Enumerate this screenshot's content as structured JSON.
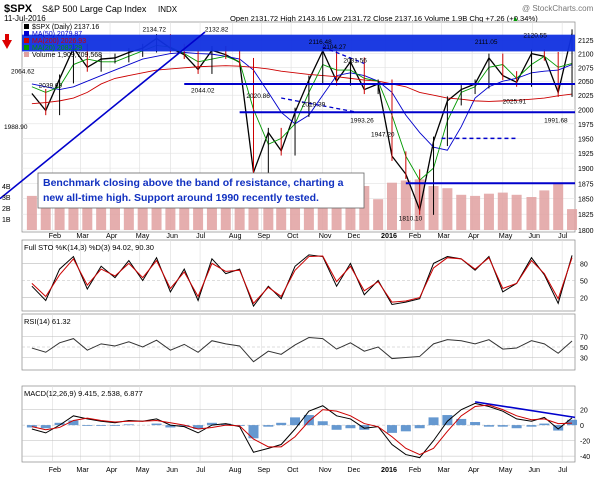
{
  "header": {
    "symbol": "$SPX",
    "description": "S&P 500 Large Cap Index",
    "exchange": "INDX",
    "watermark": "@ StockCharts.com",
    "date": "11-Jul-2016",
    "ohlc": "Open 2131.72  High 2143.16  Low 2131.72  Close 2137.16  Volume 1.9B  Chg +7.26 (+0.34%)",
    "up_arrow": "▲"
  },
  "legend": {
    "price": "$SPX (Daily) 2137.16",
    "ma50": "MA(50) 2079.87",
    "ma200": "MA(200) 2026.93",
    "ma20": "MA(20) 2082.29",
    "volume": "Volume 1,909,709,568"
  },
  "annotation": {
    "text_line1": "Benchmark closing above the band of resistance, charting a",
    "text_line2": "new all-time high. Support around 1990 recently tested."
  },
  "colors": {
    "price_up": "#000000",
    "price_down": "#cc0000",
    "ma50": "#0000cc",
    "ma200": "#cc0000",
    "ma20": "#009900",
    "volume": "#e0a0a0",
    "annotation_lines": "#0000cc",
    "band_fill": "#1030e0",
    "sto_k": "#000000",
    "sto_d": "#cc0000",
    "macd": "#000000",
    "signal": "#cc0000",
    "histogram": "#4a86c8"
  },
  "chart_data": [
    {
      "type": "line",
      "panel": "price",
      "title": "$SPX (Daily) 2137.16",
      "scale": "log",
      "ylim": [
        1800,
        2155
      ],
      "y_ticks": [
        1800,
        1825,
        1850,
        1875,
        1900,
        1925,
        1950,
        1975,
        2000,
        2025,
        2050,
        2075,
        2100,
        2125
      ],
      "x": [
        "2015-01-12",
        "2015-01-26",
        "2015-02-09",
        "2015-02-23",
        "2015-03-09",
        "2015-03-23",
        "2015-04-06",
        "2015-04-20",
        "2015-05-04",
        "2015-05-18",
        "2015-06-01",
        "2015-06-15",
        "2015-06-29",
        "2015-07-13",
        "2015-07-27",
        "2015-08-10",
        "2015-08-24",
        "2015-09-08",
        "2015-09-21",
        "2015-10-05",
        "2015-10-19",
        "2015-11-02",
        "2015-11-16",
        "2015-11-30",
        "2015-12-14",
        "2015-12-28",
        "2016-01-11",
        "2016-01-25",
        "2016-02-08",
        "2016-02-22",
        "2016-03-07",
        "2016-03-21",
        "2016-04-04",
        "2016-04-18",
        "2016-05-02",
        "2016-05-16",
        "2016-05-31",
        "2016-06-13",
        "2016-06-27",
        "2016-07-11"
      ],
      "series": [
        {
          "name": "$SPX",
          "values": [
            2028,
            1998,
            2054,
            2110,
            2075,
            2090,
            2092,
            2102,
            2110,
            2128,
            2110,
            2098,
            2071,
            2106,
            2098,
            2084,
            1893,
            1960,
            1929,
            1995,
            2052,
            2105,
            2050,
            2085,
            2035,
            2045,
            1920,
            1890,
            1832,
            1945,
            2015,
            2035,
            2045,
            2092,
            2060,
            2048,
            2100,
            2095,
            2030,
            2137
          ]
        },
        {
          "name": "MA(50) 2079.87",
          "values": [
            2045,
            2040,
            2035,
            2040,
            2050,
            2060,
            2070,
            2080,
            2090,
            2095,
            2100,
            2102,
            2100,
            2099,
            2095,
            2090,
            2070,
            2030,
            1995,
            1975,
            1990,
            2025,
            2060,
            2065,
            2060,
            2050,
            2030,
            1990,
            1960,
            1935,
            1930,
            1970,
            2020,
            2040,
            2050,
            2055,
            2065,
            2068,
            2070,
            2080
          ]
        },
        {
          "name": "MA(200) 2026.93",
          "values": [
            2010,
            2012,
            2015,
            2020,
            2030,
            2045,
            2055,
            2060,
            2065,
            2070,
            2072,
            2074,
            2076,
            2077,
            2078,
            2077,
            2075,
            2072,
            2068,
            2065,
            2062,
            2060,
            2058,
            2055,
            2052,
            2050,
            2045,
            2040,
            2030,
            2025,
            2020,
            2018,
            2015,
            2014,
            2015,
            2016,
            2018,
            2020,
            2024,
            2027
          ]
        },
        {
          "name": "MA(20) 2082.29",
          "values": [
            2040,
            2030,
            2040,
            2080,
            2090,
            2085,
            2085,
            2095,
            2105,
            2115,
            2112,
            2100,
            2085,
            2090,
            2095,
            2085,
            2000,
            1940,
            1950,
            1975,
            2030,
            2080,
            2070,
            2070,
            2055,
            2050,
            1990,
            1920,
            1880,
            1900,
            1980,
            2030,
            2040,
            2075,
            2080,
            2055,
            2080,
            2095,
            2075,
            2082
          ]
        },
        {
          "name": "Volume 1,909,709,568",
          "values": [
            3.1,
            3.3,
            3.0,
            2.8,
            3.2,
            3.0,
            2.7,
            3.0,
            3.1,
            2.8,
            2.9,
            3.0,
            3.4,
            2.8,
            3.0,
            2.9,
            4.6,
            3.8,
            3.5,
            3.2,
            3.4,
            3.3,
            3.6,
            3.9,
            4.0,
            2.8,
            4.3,
            4.5,
            4.6,
            4.0,
            3.8,
            3.2,
            3.1,
            3.3,
            3.4,
            3.2,
            3.0,
            3.6,
            4.3,
            1.9
          ]
        }
      ],
      "volume_ticks": [
        {
          "label": "4B",
          "value": 4
        },
        {
          "label": "3B",
          "value": 3
        },
        {
          "label": "2B",
          "value": 2
        },
        {
          "label": "1B",
          "value": 1
        }
      ],
      "band": {
        "low": 2104,
        "high": 2135
      },
      "support_levels": [
        2045,
        1995
      ],
      "level_1875": 1875,
      "dashed_level": 1950,
      "value_labels": [
        {
          "text": "2134.72",
          "x": "2015-05-18",
          "y": 2141
        },
        {
          "text": "2132.82",
          "x": "2015-07-20",
          "y": 2141
        },
        {
          "text": "2116.48",
          "x": "2015-11-02",
          "y": 2118
        },
        {
          "text": "2104.27",
          "x": "2015-11-16",
          "y": 2108
        },
        {
          "text": "2081.56",
          "x": "2015-12-07",
          "y": 2084
        },
        {
          "text": "2111.05",
          "x": "2016-04-18",
          "y": 2118
        },
        {
          "text": "2120.55",
          "x": "2016-06-06",
          "y": 2130
        },
        {
          "text": "2064.62",
          "x": "2015-01-05",
          "y": 2064
        },
        {
          "text": "2039.69",
          "x": "2015-02-02",
          "y": 2039
        },
        {
          "text": "2044.02",
          "x": "2015-07-06",
          "y": 2030
        },
        {
          "text": "2020.86",
          "x": "2015-08-31",
          "y": 2020
        },
        {
          "text": "2019.39",
          "x": "2015-10-26",
          "y": 2005
        },
        {
          "text": "1993.26",
          "x": "2015-12-14",
          "y": 1977
        },
        {
          "text": "1947.20",
          "x": "2016-01-04",
          "y": 1953
        },
        {
          "text": "2025.91",
          "x": "2016-05-16",
          "y": 2010
        },
        {
          "text": "1991.68",
          "x": "2016-06-27",
          "y": 1977
        },
        {
          "text": "1988.90",
          "x": "2014-12-29",
          "y": 1966
        },
        {
          "text": "1810.10",
          "x": "2016-02-01",
          "y": 1815
        }
      ]
    },
    {
      "type": "line",
      "panel": "stochastics",
      "title": "Full STO %K(14,3) %D(3) 94.02, 90.30",
      "ylim": [
        0,
        100
      ],
      "y_ticks": [
        20,
        50,
        80
      ],
      "x": [
        "2015-01-12",
        "2015-01-26",
        "2015-02-09",
        "2015-02-23",
        "2015-03-09",
        "2015-03-23",
        "2015-04-06",
        "2015-04-20",
        "2015-05-04",
        "2015-05-18",
        "2015-06-01",
        "2015-06-15",
        "2015-06-29",
        "2015-07-13",
        "2015-07-27",
        "2015-08-10",
        "2015-08-24",
        "2015-09-08",
        "2015-09-21",
        "2015-10-05",
        "2015-10-19",
        "2015-11-02",
        "2015-11-16",
        "2015-11-30",
        "2015-12-14",
        "2015-12-28",
        "2016-01-11",
        "2016-01-25",
        "2016-02-08",
        "2016-02-22",
        "2016-03-07",
        "2016-03-21",
        "2016-04-04",
        "2016-04-18",
        "2016-05-02",
        "2016-05-16",
        "2016-05-31",
        "2016-06-13",
        "2016-06-27",
        "2016-07-11"
      ],
      "series": [
        {
          "name": "%K",
          "values": [
            40,
            15,
            70,
            92,
            35,
            75,
            55,
            85,
            50,
            90,
            30,
            70,
            15,
            88,
            62,
            70,
            5,
            40,
            18,
            75,
            95,
            92,
            40,
            80,
            25,
            50,
            8,
            12,
            18,
            80,
            92,
            88,
            68,
            92,
            30,
            45,
            90,
            60,
            10,
            94
          ]
        },
        {
          "name": "%D",
          "values": [
            45,
            22,
            60,
            88,
            42,
            70,
            58,
            80,
            55,
            85,
            36,
            65,
            22,
            80,
            66,
            68,
            10,
            38,
            22,
            68,
            92,
            93,
            48,
            75,
            32,
            48,
            12,
            14,
            20,
            72,
            90,
            88,
            70,
            90,
            36,
            45,
            85,
            62,
            18,
            90
          ]
        }
      ]
    },
    {
      "type": "line",
      "panel": "rsi",
      "title": "RSI(14) 61.32",
      "ylim": [
        10,
        90
      ],
      "y_ticks": [
        30,
        50,
        70
      ],
      "x": [
        "2015-01-12",
        "2015-01-26",
        "2015-02-09",
        "2015-02-23",
        "2015-03-09",
        "2015-03-23",
        "2015-04-06",
        "2015-04-20",
        "2015-05-04",
        "2015-05-18",
        "2015-06-01",
        "2015-06-15",
        "2015-06-29",
        "2015-07-13",
        "2015-07-27",
        "2015-08-10",
        "2015-08-24",
        "2015-09-08",
        "2015-09-21",
        "2015-10-05",
        "2015-10-19",
        "2015-11-02",
        "2015-11-16",
        "2015-11-30",
        "2015-12-14",
        "2015-12-28",
        "2016-01-11",
        "2016-01-25",
        "2016-02-08",
        "2016-02-22",
        "2016-03-07",
        "2016-03-21",
        "2016-04-04",
        "2016-04-18",
        "2016-05-02",
        "2016-05-16",
        "2016-05-31",
        "2016-06-13",
        "2016-06-27",
        "2016-07-11"
      ],
      "series": [
        {
          "name": "RSI(14)",
          "values": [
            48,
            40,
            58,
            66,
            44,
            56,
            52,
            60,
            50,
            63,
            44,
            55,
            40,
            62,
            56,
            52,
            22,
            42,
            36,
            54,
            68,
            66,
            46,
            58,
            42,
            50,
            28,
            30,
            32,
            56,
            64,
            62,
            56,
            64,
            46,
            48,
            62,
            56,
            38,
            61.32
          ]
        }
      ]
    },
    {
      "type": "line",
      "panel": "macd",
      "title": "MACD(12,26,9) 9.415, 2.538, 6.877",
      "ylim": [
        -45,
        35
      ],
      "y_ticks": [
        -40,
        -20,
        0,
        20
      ],
      "x": [
        "2015-01-12",
        "2015-01-26",
        "2015-02-09",
        "2015-02-23",
        "2015-03-09",
        "2015-03-23",
        "2015-04-06",
        "2015-04-20",
        "2015-05-04",
        "2015-05-18",
        "2015-06-01",
        "2015-06-15",
        "2015-06-29",
        "2015-07-13",
        "2015-07-27",
        "2015-08-10",
        "2015-08-24",
        "2015-09-08",
        "2015-09-21",
        "2015-10-05",
        "2015-10-19",
        "2015-11-02",
        "2015-11-16",
        "2015-11-30",
        "2015-12-14",
        "2015-12-28",
        "2016-01-11",
        "2016-01-25",
        "2016-02-08",
        "2016-02-22",
        "2016-03-07",
        "2016-03-21",
        "2016-04-04",
        "2016-04-18",
        "2016-05-02",
        "2016-05-16",
        "2016-05-31",
        "2016-06-13",
        "2016-06-27",
        "2016-07-11"
      ],
      "series": [
        {
          "name": "MACD",
          "values": [
            -5,
            -10,
            0,
            12,
            8,
            5,
            3,
            6,
            5,
            8,
            0,
            -2,
            -10,
            0,
            2,
            -2,
            -35,
            -30,
            -25,
            -5,
            18,
            25,
            12,
            8,
            -4,
            -2,
            -25,
            -38,
            -42,
            -20,
            5,
            20,
            28,
            24,
            18,
            8,
            5,
            10,
            -5,
            9.415
          ]
        },
        {
          "name": "Signal",
          "values": [
            -2,
            -6,
            -3,
            6,
            9,
            6,
            4,
            5,
            5,
            6,
            3,
            0,
            -5,
            -3,
            0,
            -1,
            -18,
            -28,
            -28,
            -15,
            5,
            20,
            18,
            12,
            2,
            -2,
            -15,
            -30,
            -38,
            -30,
            -8,
            12,
            24,
            26,
            20,
            12,
            7,
            8,
            2,
            2.538
          ]
        },
        {
          "name": "Histogram",
          "values": [
            -3,
            -4,
            3,
            6,
            -1,
            -1,
            -1,
            1,
            0,
            2,
            -3,
            -2,
            -5,
            3,
            2,
            -1,
            -17,
            -2,
            3,
            10,
            13,
            5,
            -6,
            -4,
            -6,
            0,
            -10,
            -8,
            -4,
            10,
            13,
            8,
            4,
            -2,
            -2,
            -4,
            -2,
            2,
            -7,
            6.877
          ]
        }
      ]
    }
  ],
  "x_axis_labels": [
    "Feb",
    "Mar",
    "Apr",
    "May",
    "Jun",
    "Jul",
    "Aug",
    "Sep",
    "Oct",
    "Nov",
    "Dec",
    "2016",
    "Feb",
    "Mar",
    "Apr",
    "May",
    "Jun",
    "Jul"
  ],
  "x_axis_dates": [
    "2015-02-02",
    "2015-03-02",
    "2015-04-01",
    "2015-05-01",
    "2015-06-01",
    "2015-07-01",
    "2015-08-03",
    "2015-09-01",
    "2015-10-01",
    "2015-11-02",
    "2015-12-01",
    "2016-01-04",
    "2016-02-01",
    "2016-03-01",
    "2016-04-01",
    "2016-05-02",
    "2016-06-01",
    "2016-07-01"
  ],
  "x_range": [
    "2015-01-02",
    "2016-07-14"
  ]
}
